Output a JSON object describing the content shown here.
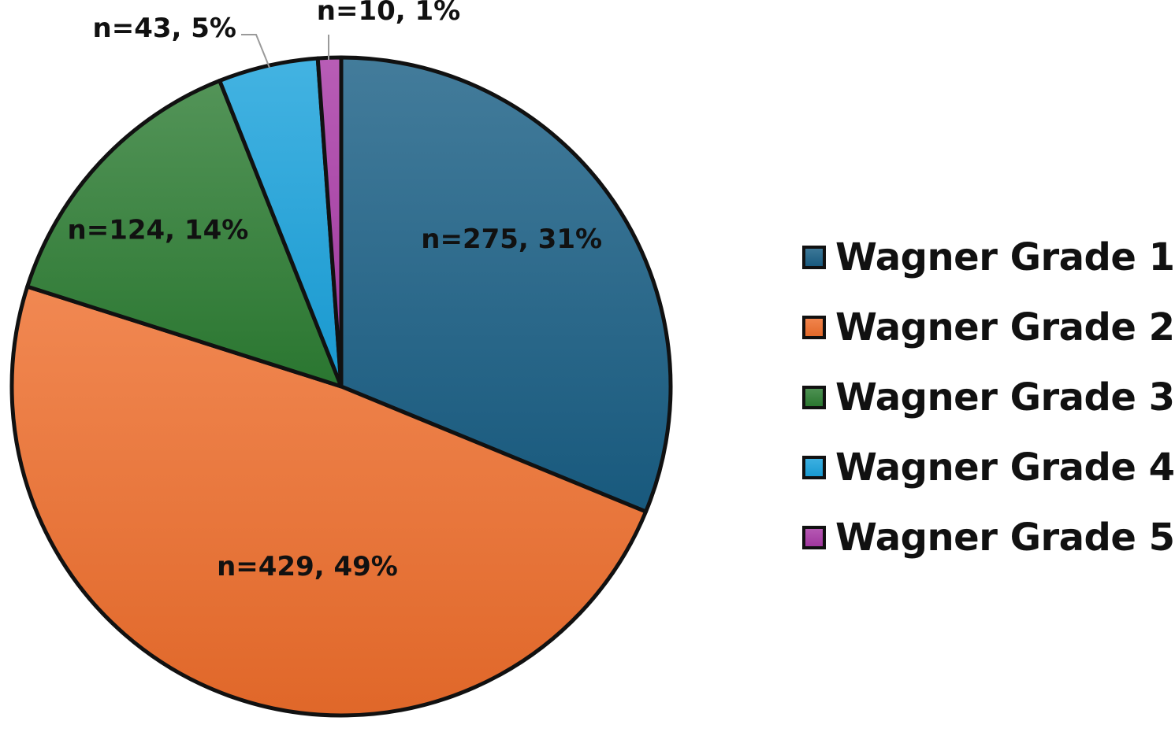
{
  "chart_data": {
    "type": "pie",
    "title": "",
    "slices": [
      {
        "name": "Wagner Grade 1",
        "n": 275,
        "percent": 31,
        "label": "n=275, 31%",
        "color": "#1a5f85"
      },
      {
        "name": "Wagner Grade 2",
        "n": 429,
        "percent": 49,
        "label": "n=429, 49%",
        "color": "#ee6e2c"
      },
      {
        "name": "Wagner Grade 3",
        "n": 124,
        "percent": 14,
        "label": "n=124, 14%",
        "color": "#2d7d33"
      },
      {
        "name": "Wagner Grade 4",
        "n": 43,
        "percent": 5,
        "label": "n=43, 5%",
        "color": "#1aa2dc"
      },
      {
        "name": "Wagner Grade 5",
        "n": 10,
        "percent": 1,
        "label": "n=10, 1%",
        "color": "#a83aa6"
      }
    ],
    "legend_position": "right",
    "start_angle": "12 o'clock",
    "direction": "clockwise"
  }
}
